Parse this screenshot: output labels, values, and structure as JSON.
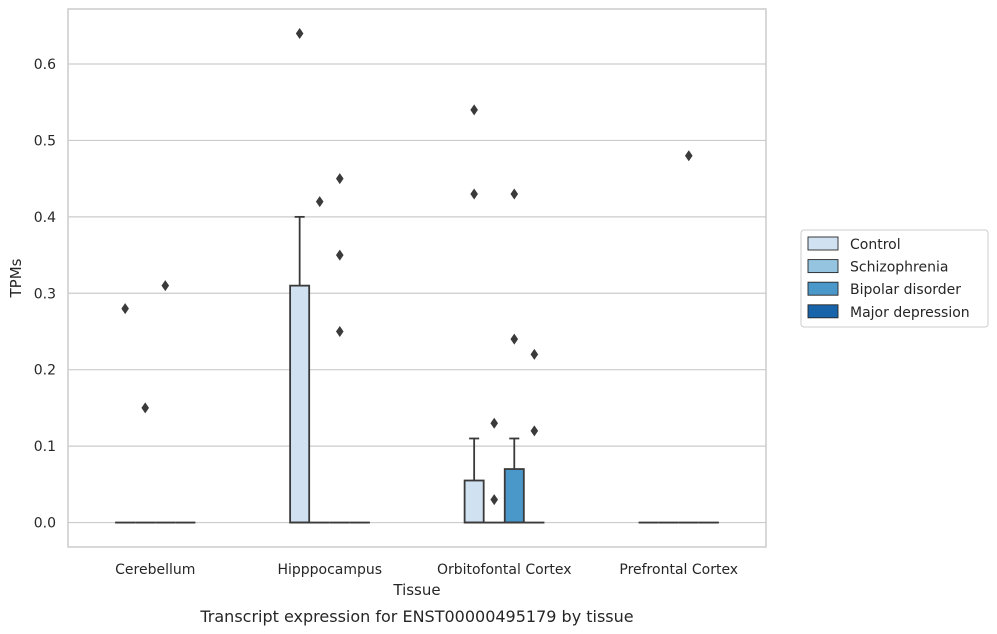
{
  "chart_data": {
    "type": "box",
    "caption": "Transcript expression for ENST00000495179 by tissue",
    "xlabel": "Tissue",
    "ylabel": "TPMs",
    "ylim": [
      -0.032,
      0.672
    ],
    "yticks": [
      0.0,
      0.1,
      0.2,
      0.3,
      0.4,
      0.5,
      0.6
    ],
    "ytick_labels": [
      "0.0",
      "0.1",
      "0.2",
      "0.3",
      "0.4",
      "0.5",
      "0.6"
    ],
    "categories": [
      "Cerebellum",
      "Hipppocampus",
      "Orbitofontal Cortex",
      "Prefrontal Cortex"
    ],
    "grid": true,
    "legend_position": "right",
    "series": [
      {
        "name": "Control",
        "color": "#d0e1f2",
        "boxes": [
          {
            "q1": 0,
            "median": 0,
            "q3": 0,
            "whisker_low": 0,
            "whisker_high": 0,
            "outliers": [
              0.28
            ]
          },
          {
            "q1": 0,
            "median": 0,
            "q3": 0.31,
            "whisker_low": 0,
            "whisker_high": 0.4,
            "outliers": [
              0.64
            ]
          },
          {
            "q1": 0,
            "median": 0,
            "q3": 0.055,
            "whisker_low": 0,
            "whisker_high": 0.11,
            "outliers": [
              0.54,
              0.43
            ]
          },
          {
            "q1": 0,
            "median": 0,
            "q3": 0,
            "whisker_low": 0,
            "whisker_high": 0,
            "outliers": []
          }
        ]
      },
      {
        "name": "Schizophrenia",
        "color": "#94c4df",
        "boxes": [
          {
            "q1": 0,
            "median": 0,
            "q3": 0,
            "whisker_low": 0,
            "whisker_high": 0,
            "outliers": [
              0.15
            ]
          },
          {
            "q1": 0,
            "median": 0,
            "q3": 0,
            "whisker_low": 0,
            "whisker_high": 0,
            "outliers": [
              0.42
            ]
          },
          {
            "q1": 0,
            "median": 0,
            "q3": 0,
            "whisker_low": 0,
            "whisker_high": 0,
            "outliers": [
              0.13,
              0.03
            ]
          },
          {
            "q1": 0,
            "median": 0,
            "q3": 0,
            "whisker_low": 0,
            "whisker_high": 0,
            "outliers": []
          }
        ]
      },
      {
        "name": "Bipolar disorder",
        "color": "#4a98c9",
        "boxes": [
          {
            "q1": 0,
            "median": 0,
            "q3": 0,
            "whisker_low": 0,
            "whisker_high": 0,
            "outliers": [
              0.31
            ]
          },
          {
            "q1": 0,
            "median": 0,
            "q3": 0,
            "whisker_low": 0,
            "whisker_high": 0,
            "outliers": [
              0.45,
              0.35,
              0.25
            ]
          },
          {
            "q1": 0,
            "median": 0,
            "q3": 0.07,
            "whisker_low": 0,
            "whisker_high": 0.11,
            "outliers": [
              0.43,
              0.24
            ]
          },
          {
            "q1": 0,
            "median": 0,
            "q3": 0,
            "whisker_low": 0,
            "whisker_high": 0,
            "outliers": [
              0.48
            ]
          }
        ]
      },
      {
        "name": "Major depression",
        "color": "#1764ab",
        "boxes": [
          {
            "q1": 0,
            "median": 0,
            "q3": 0,
            "whisker_low": 0,
            "whisker_high": 0,
            "outliers": []
          },
          {
            "q1": 0,
            "median": 0,
            "q3": 0,
            "whisker_low": 0,
            "whisker_high": 0,
            "outliers": []
          },
          {
            "q1": 0,
            "median": 0,
            "q3": 0,
            "whisker_low": 0,
            "whisker_high": 0,
            "outliers": [
              0.22,
              0.12
            ]
          },
          {
            "q1": 0,
            "median": 0,
            "q3": 0,
            "whisker_low": 0,
            "whisker_high": 0,
            "outliers": []
          }
        ]
      }
    ]
  }
}
